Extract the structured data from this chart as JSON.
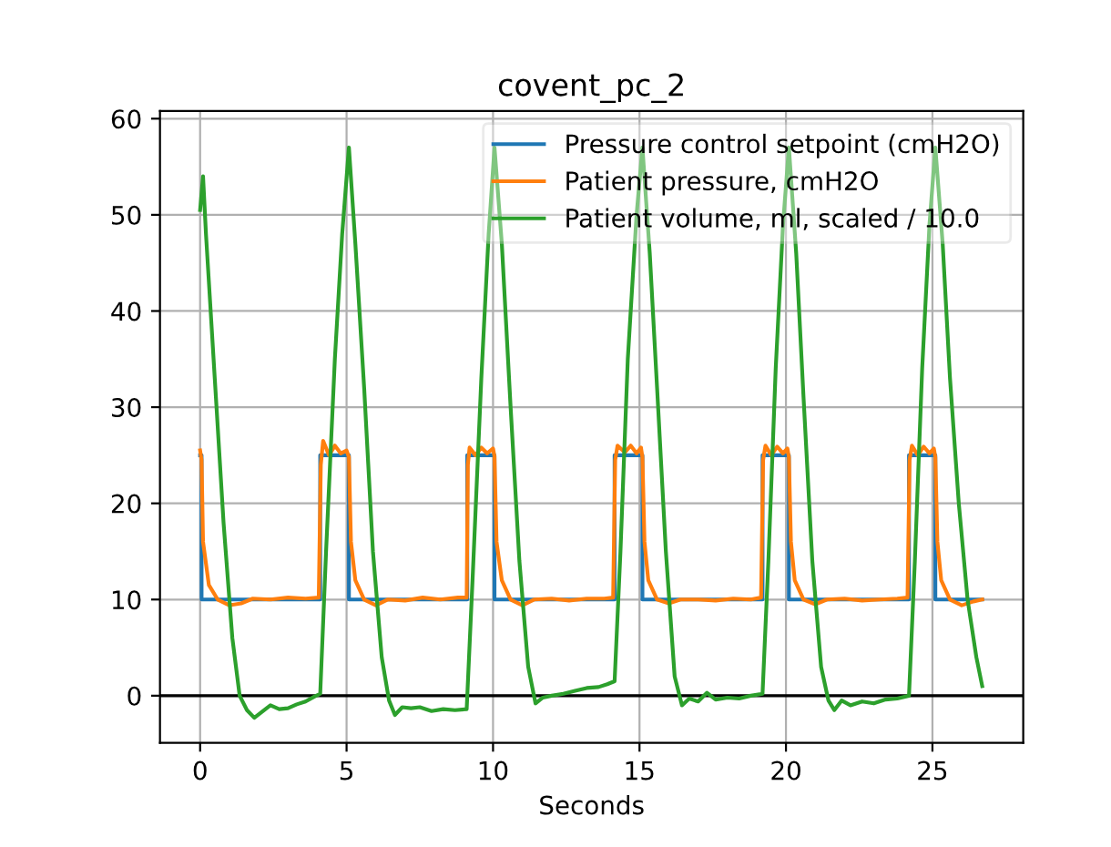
{
  "chart_data": {
    "type": "line",
    "title": "covent_pc_2",
    "xlabel": "Seconds",
    "xlim": [
      -1.37,
      28.1
    ],
    "ylim": [
      -4.9,
      60.8
    ],
    "xticks": [
      0,
      5,
      10,
      15,
      20,
      25
    ],
    "yticks": [
      0,
      10,
      20,
      30,
      40,
      50,
      60
    ],
    "grid": true,
    "legend": "top right",
    "marker": "none",
    "line_style": "solid",
    "ref_lines": [
      {
        "axis": "y",
        "value": 0,
        "color": "#000000"
      }
    ],
    "series": [
      {
        "name": "Pressure control setpoint (cmH2O)",
        "color": "#1f77b4",
        "x": [
          0,
          0.05,
          0.05,
          4.1,
          4.1,
          5.08,
          5.08,
          9.12,
          9.12,
          10.05,
          10.05,
          14.15,
          14.15,
          15.1,
          15.1,
          19.2,
          19.2,
          20.1,
          20.1,
          24.2,
          24.2,
          25.1,
          25.1,
          26.7
        ],
        "values": [
          25,
          25,
          10,
          10,
          25,
          25,
          10,
          10,
          25,
          25,
          10,
          10,
          25,
          25,
          10,
          10,
          25,
          25,
          10,
          10,
          25,
          25,
          10,
          10
        ]
      },
      {
        "name": "Patient pressure, cmH2O",
        "color": "#ff7f0e",
        "x": [
          0,
          0.05,
          0.1,
          0.3,
          0.6,
          1.0,
          1.4,
          1.8,
          2.4,
          3.0,
          3.6,
          4.05,
          4.12,
          4.2,
          4.4,
          4.6,
          4.8,
          5.0,
          5.08,
          5.15,
          5.3,
          5.6,
          6.0,
          6.4,
          7.0,
          7.6,
          8.2,
          8.8,
          9.1,
          9.14,
          9.2,
          9.4,
          9.6,
          9.8,
          10.0,
          10.05,
          10.12,
          10.3,
          10.6,
          11.0,
          11.4,
          12.0,
          12.6,
          13.2,
          13.8,
          14.1,
          14.17,
          14.25,
          14.5,
          14.7,
          14.9,
          15.05,
          15.1,
          15.17,
          15.3,
          15.6,
          16.0,
          16.4,
          17.0,
          17.6,
          18.2,
          18.8,
          19.15,
          19.22,
          19.3,
          19.5,
          19.7,
          19.9,
          20.05,
          20.1,
          20.17,
          20.3,
          20.6,
          21.0,
          21.4,
          22.0,
          22.6,
          23.2,
          23.8,
          24.15,
          24.22,
          24.3,
          24.5,
          24.7,
          24.9,
          25.05,
          25.1,
          25.17,
          25.3,
          25.6,
          26.0,
          26.4,
          26.7
        ],
        "values": [
          25.5,
          24.5,
          16,
          11.5,
          10,
          9.4,
          9.6,
          10.1,
          10.0,
          10.2,
          10.1,
          10.2,
          24,
          26.5,
          25,
          26,
          25.2,
          25.5,
          24.8,
          16,
          12,
          10,
          9.4,
          10,
          9.9,
          10.2,
          10,
          10.2,
          10.2,
          24,
          25.8,
          25,
          25.8,
          25.2,
          25.7,
          24.9,
          16,
          12,
          10,
          9.4,
          10,
          10.1,
          9.9,
          10.1,
          10.1,
          10.2,
          24.5,
          26,
          25.3,
          26,
          25.2,
          25.8,
          24.8,
          16,
          12,
          10,
          9.6,
          10,
          10,
          9.9,
          10.1,
          10,
          10.2,
          24.5,
          26,
          25,
          25.9,
          25.2,
          25.7,
          24.8,
          16,
          12,
          10,
          9.5,
          10,
          10.1,
          9.9,
          10,
          10.1,
          10.2,
          24.5,
          26,
          25,
          25.9,
          25.2,
          25.7,
          24.8,
          16,
          12,
          10,
          9.4,
          9.8,
          10
        ]
      },
      {
        "name": "Patient volume, ml, scaled / 10.0",
        "color": "#2ca02c",
        "x": [
          0,
          0.1,
          0.2,
          0.5,
          0.8,
          1.1,
          1.35,
          1.6,
          1.85,
          2.1,
          2.4,
          2.7,
          3.0,
          3.3,
          3.6,
          3.9,
          4.1,
          4.3,
          4.6,
          4.85,
          5.08,
          5.3,
          5.6,
          5.9,
          6.2,
          6.45,
          6.65,
          6.9,
          7.2,
          7.5,
          7.9,
          8.3,
          8.7,
          9.1,
          9.3,
          9.6,
          9.85,
          10.05,
          10.3,
          10.6,
          10.9,
          11.2,
          11.45,
          11.7,
          12.0,
          12.4,
          12.8,
          13.2,
          13.6,
          13.9,
          14.15,
          14.35,
          14.6,
          14.9,
          15.1,
          15.35,
          15.6,
          15.9,
          16.2,
          16.45,
          16.7,
          17.0,
          17.3,
          17.6,
          18.0,
          18.4,
          18.8,
          19.2,
          19.4,
          19.65,
          19.9,
          20.1,
          20.35,
          20.6,
          20.9,
          21.2,
          21.45,
          21.65,
          21.9,
          22.2,
          22.6,
          23.0,
          23.4,
          23.8,
          24.2,
          24.4,
          24.65,
          24.9,
          25.1,
          25.35,
          25.6,
          25.9,
          26.2,
          26.5,
          26.7
        ],
        "values": [
          50.5,
          54,
          48,
          33,
          18,
          6,
          0,
          -1.5,
          -2.3,
          -1.7,
          -1,
          -1.4,
          -1.3,
          -0.9,
          -0.6,
          -0.1,
          0.2,
          15,
          35,
          48,
          57,
          47,
          32,
          15,
          4,
          -0.5,
          -2,
          -1.2,
          -1.3,
          -1.2,
          -1.6,
          -1.4,
          -1.5,
          -1.4,
          12,
          33,
          48,
          57,
          47,
          30,
          14,
          3,
          -0.8,
          -0.2,
          0,
          0.2,
          0.5,
          0.8,
          0.9,
          1.2,
          1.5,
          15,
          35,
          50,
          57,
          46,
          32,
          15,
          2,
          -1,
          -0.3,
          -0.6,
          0.3,
          -0.4,
          -0.2,
          -0.3,
          0,
          0.2,
          14,
          34,
          49,
          57,
          46,
          31,
          14,
          3,
          -0.5,
          -1.5,
          -0.5,
          -1,
          -0.6,
          -0.8,
          -0.4,
          -0.3,
          0,
          14,
          34,
          49,
          57,
          47,
          33,
          20,
          10,
          4,
          1
        ]
      }
    ]
  }
}
